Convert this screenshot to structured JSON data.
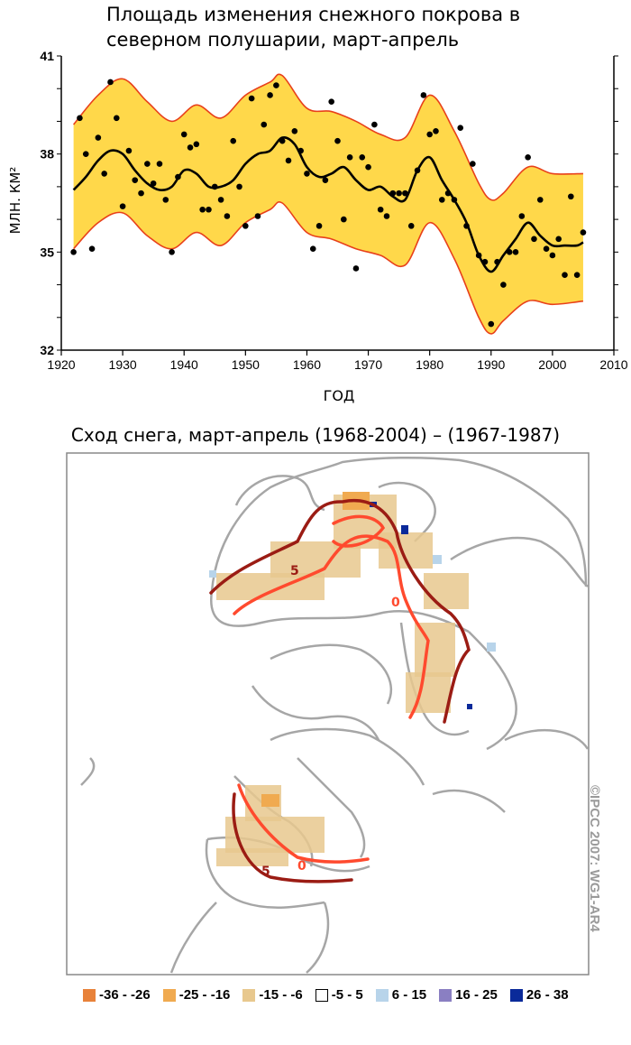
{
  "chart_data": [
    {
      "type": "scatter",
      "title": "Площадь изменения снежного покрова в северном полушарии, март-апрель",
      "xlabel": "ГОД",
      "ylabel": "МЛН. КМ²",
      "xlim": [
        1920,
        2010
      ],
      "ylim": [
        32,
        41
      ],
      "xticks": [
        1920,
        1930,
        1940,
        1950,
        1960,
        1970,
        1980,
        1990,
        2000,
        2010
      ],
      "yticks": [
        32,
        35,
        38,
        41
      ],
      "colors": {
        "band": "#ffd84a",
        "band_edge": "#e8401a",
        "points": "#000000",
        "trend": "#000000"
      },
      "points": {
        "x": [
          1922,
          1923,
          1924,
          1925,
          1926,
          1927,
          1928,
          1929,
          1930,
          1931,
          1932,
          1933,
          1934,
          1935,
          1936,
          1937,
          1938,
          1939,
          1940,
          1941,
          1942,
          1943,
          1944,
          1945,
          1946,
          1947,
          1948,
          1949,
          1950,
          1951,
          1952,
          1953,
          1954,
          1955,
          1956,
          1957,
          1958,
          1959,
          1960,
          1961,
          1962,
          1963,
          1964,
          1965,
          1966,
          1967,
          1968,
          1969,
          1970,
          1971,
          1972,
          1973,
          1974,
          1975,
          1976,
          1977,
          1978,
          1979,
          1980,
          1981,
          1982,
          1983,
          1984,
          1985,
          1986,
          1987,
          1988,
          1989,
          1990,
          1991,
          1992,
          1993,
          1994,
          1995,
          1996,
          1997,
          1998,
          1999,
          2000,
          2001,
          2002,
          2003,
          2004,
          2005
        ],
        "y": [
          35.0,
          39.1,
          38.0,
          35.1,
          38.5,
          37.4,
          40.2,
          39.1,
          36.4,
          38.1,
          37.2,
          36.8,
          37.7,
          37.1,
          37.7,
          36.6,
          35.0,
          37.3,
          38.6,
          38.2,
          38.3,
          36.3,
          36.3,
          37.0,
          36.6,
          36.1,
          38.4,
          37.0,
          35.8,
          39.7,
          36.1,
          38.9,
          39.8,
          40.1,
          38.4,
          37.8,
          38.7,
          38.1,
          37.4,
          35.1,
          35.8,
          37.2,
          39.6,
          38.4,
          36.0,
          37.9,
          34.5,
          37.9,
          37.6,
          38.9,
          36.3,
          36.1,
          36.8,
          36.8,
          36.8,
          35.8,
          37.5,
          39.8,
          38.6,
          38.7,
          36.6,
          36.8,
          36.6,
          38.8,
          35.8,
          37.7,
          34.9,
          34.7,
          32.8,
          34.7,
          34.0,
          35.0,
          35.0,
          36.1,
          37.9,
          35.4,
          36.6,
          35.1,
          34.9,
          35.4,
          34.3,
          36.7,
          34.3,
          35.6
        ]
      },
      "trend": {
        "x": [
          1922,
          1924,
          1926,
          1928,
          1930,
          1932,
          1934,
          1936,
          1938,
          1940,
          1942,
          1944,
          1946,
          1948,
          1950,
          1952,
          1954,
          1956,
          1958,
          1960,
          1962,
          1964,
          1966,
          1968,
          1970,
          1972,
          1974,
          1976,
          1978,
          1980,
          1982,
          1984,
          1986,
          1988,
          1990,
          1992,
          1994,
          1996,
          1998,
          2000,
          2002,
          2004,
          2005
        ],
        "y": [
          36.9,
          37.3,
          37.8,
          38.1,
          38.0,
          37.5,
          37.1,
          36.9,
          37.0,
          37.5,
          37.4,
          37.0,
          37.0,
          37.2,
          37.7,
          38.0,
          38.1,
          38.5,
          38.3,
          37.6,
          37.3,
          37.4,
          37.6,
          37.2,
          36.9,
          37.0,
          36.7,
          36.6,
          37.5,
          37.9,
          37.2,
          36.6,
          35.9,
          34.9,
          34.4,
          34.9,
          35.4,
          35.9,
          35.5,
          35.2,
          35.2,
          35.2,
          35.3
        ]
      },
      "band_upper": {
        "x": [
          1922,
          1926,
          1930,
          1934,
          1938,
          1942,
          1946,
          1950,
          1954,
          1956,
          1960,
          1964,
          1968,
          1972,
          1976,
          1980,
          1984,
          1988,
          1990,
          1992,
          1996,
          2000,
          2005
        ],
        "y": [
          38.9,
          39.8,
          40.3,
          39.6,
          39.0,
          39.5,
          39.1,
          39.8,
          40.2,
          40.4,
          39.4,
          39.3,
          39.0,
          38.6,
          38.5,
          39.8,
          38.7,
          37.1,
          36.6,
          36.8,
          37.6,
          37.4,
          37.4
        ]
      },
      "band_lower": {
        "x": [
          1922,
          1926,
          1930,
          1934,
          1938,
          1942,
          1946,
          1950,
          1954,
          1956,
          1960,
          1964,
          1968,
          1972,
          1976,
          1980,
          1984,
          1988,
          1990,
          1992,
          1996,
          2000,
          2005
        ],
        "y": [
          35.1,
          35.9,
          36.2,
          35.5,
          35.1,
          35.6,
          35.2,
          35.9,
          36.3,
          36.5,
          35.6,
          35.4,
          35.1,
          34.9,
          34.6,
          35.9,
          34.8,
          33.0,
          32.5,
          32.9,
          33.5,
          33.4,
          33.5
        ]
      }
    },
    {
      "type": "heatmap",
      "title": "Сход снега, март-апрель (1968-2004) – (1967-1987)",
      "contour_labels": [
        "5",
        "0",
        "0",
        "5"
      ],
      "colors": {
        "land": "#a6a6a6",
        "contour_5": "#9b1c14",
        "contour_0": "#ff4a2e"
      },
      "legend": [
        {
          "label": "-36 - -26",
          "color": "#e8823a"
        },
        {
          "label": "-25 - -16",
          "color": "#f0aa50"
        },
        {
          "label": "-15 - -6",
          "color": "#e8c88e"
        },
        {
          "label": "-5 - 5",
          "color": "#ffffff"
        },
        {
          "label": "6 - 15",
          "color": "#b8d4ea"
        },
        {
          "label": "16 - 25",
          "color": "#8a7fc2"
        },
        {
          "label": "26 - 38",
          "color": "#0a2a9a"
        }
      ]
    }
  ],
  "credit": "©IPCC 2007: WG1-AR4"
}
